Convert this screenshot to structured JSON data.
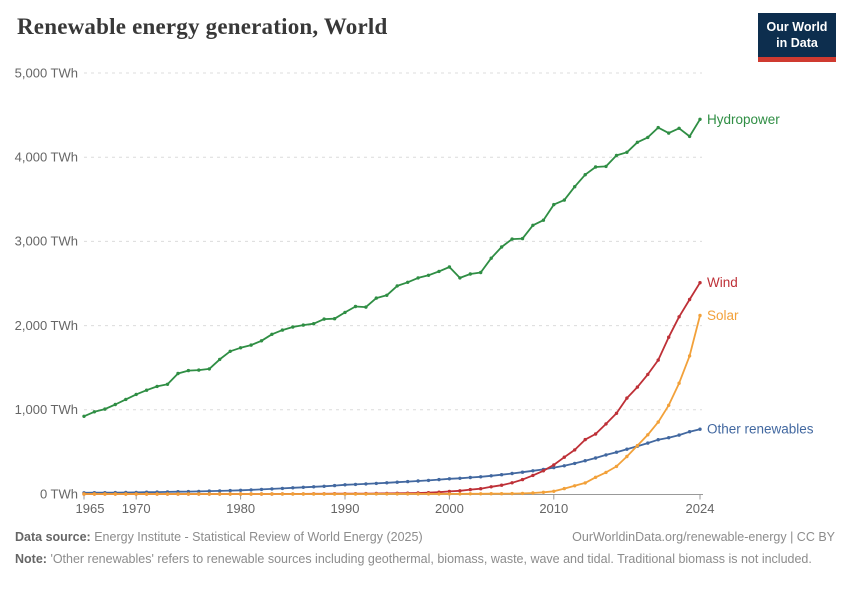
{
  "header": {
    "title": "Renewable energy generation, World",
    "logo_line1": "Our World",
    "logo_line2": "in Data"
  },
  "chart_data": {
    "type": "line",
    "title": "Renewable energy generation, World",
    "unit": "TWh",
    "xlim": [
      1965,
      2024
    ],
    "ylim": [
      0,
      5000
    ],
    "grid": "horizontal-dashed",
    "legend_position": "right-end-labels",
    "x_ticks": [
      1965,
      1970,
      1980,
      1990,
      2000,
      2010,
      2024
    ],
    "x_tick_labels": [
      "1965",
      "1970",
      "1980",
      "1990",
      "2000",
      "2010",
      "2024"
    ],
    "y_ticks": [
      0,
      1000,
      2000,
      3000,
      4000,
      5000
    ],
    "y_tick_labels": [
      "0 TWh",
      "1,000 TWh",
      "2,000 TWh",
      "3,000 TWh",
      "4,000 TWh",
      "5,000 TWh"
    ],
    "x": [
      1965,
      1966,
      1967,
      1968,
      1969,
      1970,
      1971,
      1972,
      1973,
      1974,
      1975,
      1976,
      1977,
      1978,
      1979,
      1980,
      1981,
      1982,
      1983,
      1984,
      1985,
      1986,
      1987,
      1988,
      1989,
      1990,
      1991,
      1992,
      1993,
      1994,
      1995,
      1996,
      1997,
      1998,
      1999,
      2000,
      2001,
      2002,
      2003,
      2004,
      2005,
      2006,
      2007,
      2008,
      2009,
      2010,
      2011,
      2012,
      2013,
      2014,
      2015,
      2016,
      2017,
      2018,
      2019,
      2020,
      2021,
      2022,
      2023,
      2024
    ],
    "series": [
      {
        "name": "Hydropower",
        "color": "#2f8e44",
        "values": [
          923,
          976,
          1008,
          1063,
          1123,
          1183,
          1233,
          1278,
          1303,
          1431,
          1465,
          1471,
          1486,
          1598,
          1695,
          1736,
          1769,
          1820,
          1897,
          1946,
          1983,
          2006,
          2022,
          2077,
          2082,
          2157,
          2227,
          2220,
          2327,
          2360,
          2472,
          2514,
          2567,
          2597,
          2644,
          2696,
          2566,
          2613,
          2631,
          2801,
          2933,
          3027,
          3033,
          3191,
          3252,
          3437,
          3490,
          3650,
          3792,
          3884,
          3891,
          4021,
          4058,
          4177,
          4235,
          4352,
          4286,
          4343,
          4247,
          4450
        ]
      },
      {
        "name": "Wind",
        "color": "#be3037",
        "values": [
          0,
          0,
          0,
          0,
          0,
          0,
          0,
          0,
          0,
          0,
          0,
          0,
          0,
          0,
          0,
          0,
          0,
          0,
          0,
          1,
          1,
          1,
          2,
          2,
          3,
          4,
          4,
          5,
          6,
          7,
          8,
          9,
          12,
          16,
          21,
          31,
          38,
          52,
          63,
          85,
          104,
          133,
          171,
          221,
          276,
          346,
          437,
          524,
          646,
          712,
          832,
          958,
          1139,
          1270,
          1421,
          1590,
          1862,
          2105,
          2310,
          2510
        ]
      },
      {
        "name": "Solar",
        "color": "#f2a13a",
        "values": [
          0,
          0,
          0,
          0,
          0,
          0,
          0,
          0,
          0,
          0,
          0,
          0,
          0,
          0,
          0,
          0,
          0,
          0,
          0,
          0,
          0,
          0,
          0,
          0,
          0,
          0,
          0,
          0,
          1,
          1,
          1,
          1,
          1,
          1,
          1,
          1,
          1,
          2,
          2,
          3,
          4,
          5,
          7,
          12,
          20,
          32,
          64,
          97,
          132,
          198,
          256,
          328,
          445,
          575,
          703,
          854,
          1053,
          1316,
          1640,
          2120
        ]
      },
      {
        "name": "Other renewables",
        "color": "#4268a0",
        "values": [
          14,
          15,
          16,
          17,
          18,
          19,
          21,
          23,
          25,
          27,
          29,
          31,
          34,
          37,
          40,
          44,
          49,
          55,
          61,
          67,
          74,
          80,
          86,
          92,
          100,
          109,
          114,
          120,
          126,
          133,
          140,
          147,
          154,
          162,
          171,
          181,
          187,
          196,
          204,
          216,
          229,
          244,
          259,
          275,
          292,
          313,
          335,
          364,
          396,
          428,
          464,
          497,
          532,
          568,
          605,
          645,
          669,
          700,
          740,
          770
        ]
      }
    ]
  },
  "footer": {
    "source_label": "Data source:",
    "source_text": "Energy Institute - Statistical Review of World Energy (2025)",
    "link_text": "OurWorldinData.org/renewable-energy | CC BY",
    "note_label": "Note:",
    "note_text": "'Other renewables' refers to renewable sources including geothermal, biomass, waste, wave and tidal. Traditional biomass is not included."
  }
}
